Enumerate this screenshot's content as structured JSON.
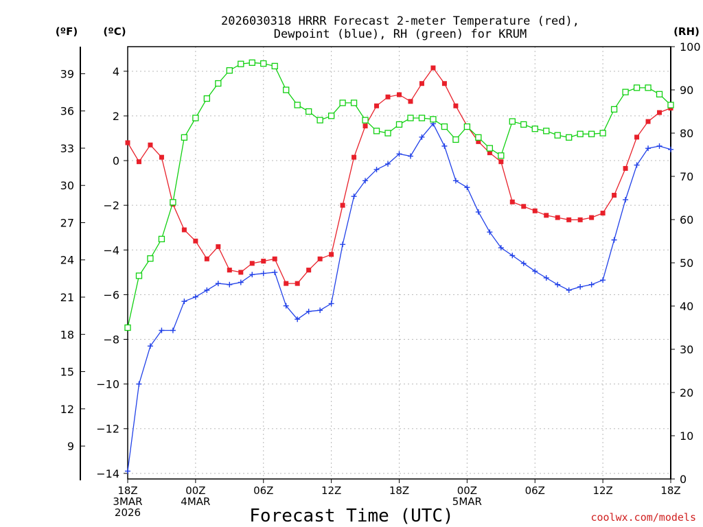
{
  "chart_data": {
    "type": "line",
    "title_line1": "2026030318 HRRR Forecast 2-meter Temperature (red),",
    "title_line2": "Dewpoint (blue), RH (green) for KRUM",
    "xlabel": "Forecast Time (UTC)",
    "unit_left_f": "(ºF)",
    "unit_left_c": "(ºC)",
    "unit_right": "(RH)",
    "credit": "coolwx.com/models",
    "hours": [
      0,
      1,
      2,
      3,
      4,
      5,
      6,
      7,
      8,
      9,
      10,
      11,
      12,
      13,
      14,
      15,
      16,
      17,
      18,
      19,
      20,
      21,
      22,
      23,
      24,
      25,
      26,
      27,
      28,
      29,
      30,
      31,
      32,
      33,
      34,
      35,
      36,
      37,
      38,
      39,
      40,
      41,
      42,
      43,
      44,
      45,
      46,
      47,
      48
    ],
    "x_ticks": [
      {
        "hour": 0,
        "line1": "18Z",
        "line2": "3MAR",
        "line3": "2026"
      },
      {
        "hour": 6,
        "line1": "00Z",
        "line2": "4MAR",
        "line3": ""
      },
      {
        "hour": 12,
        "line1": "06Z",
        "line2": "",
        "line3": ""
      },
      {
        "hour": 18,
        "line1": "12Z",
        "line2": "",
        "line3": ""
      },
      {
        "hour": 24,
        "line1": "18Z",
        "line2": "",
        "line3": ""
      },
      {
        "hour": 30,
        "line1": "00Z",
        "line2": "5MAR",
        "line3": ""
      },
      {
        "hour": 36,
        "line1": "06Z",
        "line2": "",
        "line3": ""
      },
      {
        "hour": 42,
        "line1": "12Z",
        "line2": "",
        "line3": ""
      },
      {
        "hour": 48,
        "line1": "18Z",
        "line2": "",
        "line3": ""
      }
    ],
    "celsius_range": [
      -14.25,
      5.1
    ],
    "celsius_ticks": [
      {
        "value": 4,
        "label": "4"
      },
      {
        "value": 2,
        "label": "2"
      },
      {
        "value": 0,
        "label": "0"
      },
      {
        "value": -2,
        "label": "−2"
      },
      {
        "value": -4,
        "label": "−4"
      },
      {
        "value": -6,
        "label": "−6"
      },
      {
        "value": -8,
        "label": "−8"
      },
      {
        "value": -10,
        "label": "−10"
      },
      {
        "value": -12,
        "label": "−12"
      },
      {
        "value": -14,
        "label": "−14"
      }
    ],
    "fahrenheit_ticks": [
      39,
      36,
      33,
      30,
      27,
      24,
      21,
      18,
      15,
      12,
      9
    ],
    "rh_range": [
      0,
      100
    ],
    "rh_ticks": [
      0,
      10,
      20,
      30,
      40,
      50,
      60,
      70,
      80,
      90,
      100
    ],
    "series": [
      {
        "name": "Temperature",
        "units": "C",
        "color": "#e8202a",
        "marker": "filled-square",
        "values": [
          0.8,
          -0.05,
          0.7,
          0.15,
          -1.95,
          -3.1,
          -3.6,
          -4.4,
          -3.85,
          -4.9,
          -5.0,
          -4.6,
          -4.5,
          -4.4,
          -5.5,
          -5.5,
          -4.9,
          -4.4,
          -4.2,
          -2.0,
          0.15,
          1.55,
          2.45,
          2.85,
          2.95,
          2.65,
          3.45,
          4.15,
          3.45,
          2.45,
          1.55,
          0.85,
          0.35,
          -0.05,
          -1.85,
          -2.05,
          -2.25,
          -2.45,
          -2.55,
          -2.65,
          -2.65,
          -2.55,
          -2.35,
          -1.55,
          -0.35,
          1.05,
          1.75,
          2.15,
          2.35
        ]
      },
      {
        "name": "Dewpoint",
        "units": "C",
        "color": "#2040e8",
        "marker": "plus",
        "values": [
          -13.9,
          -10.0,
          -8.3,
          -7.6,
          -7.6,
          -6.3,
          -6.1,
          -5.8,
          -5.5,
          -5.55,
          -5.45,
          -5.1,
          -5.05,
          -5.0,
          -6.5,
          -7.1,
          -6.75,
          -6.7,
          -6.4,
          -3.75,
          -1.6,
          -0.9,
          -0.4,
          -0.15,
          0.3,
          0.2,
          1.05,
          1.65,
          0.65,
          -0.9,
          -1.2,
          -2.3,
          -3.2,
          -3.9,
          -4.25,
          -4.6,
          -4.95,
          -5.25,
          -5.55,
          -5.8,
          -5.65,
          -5.55,
          -5.35,
          -3.55,
          -1.75,
          -0.2,
          0.55,
          0.65,
          0.5
        ]
      },
      {
        "name": "RH",
        "units": "%",
        "color": "#10d010",
        "marker": "open-square",
        "values": [
          35,
          47,
          51,
          55.5,
          64,
          79,
          83.5,
          88,
          91.5,
          94.5,
          96,
          96.3,
          96.1,
          95.5,
          90,
          86.5,
          85,
          83,
          84,
          87,
          87,
          83,
          80.5,
          80,
          82,
          83.5,
          83.5,
          83.2,
          81.5,
          78.5,
          81.5,
          79,
          76.5,
          74.8,
          82.7,
          82,
          81,
          80.5,
          79.5,
          79,
          79.8,
          79.8,
          80,
          85.5,
          89.5,
          90.5,
          90.5,
          89,
          86.5
        ]
      }
    ]
  }
}
